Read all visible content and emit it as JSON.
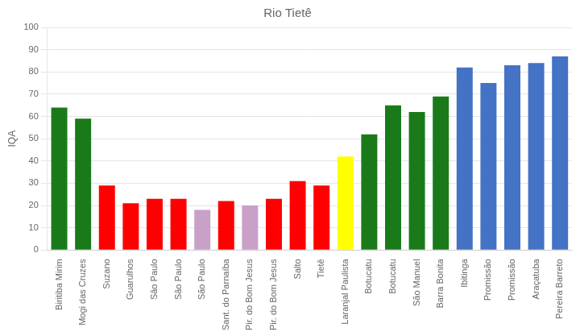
{
  "chart_data": {
    "type": "bar",
    "title": "Rio Tietê",
    "ylabel": "IQA",
    "categories": [
      "Biritiba Mirim",
      "Mogi das Cruzes",
      "Suzano",
      "Guarulhos",
      "São Paulo",
      "São Paulo",
      "São Paulo",
      "Sant. do Parnaíba",
      "Pir. do Bom Jesus",
      "Pir. do Bom Jesus",
      "Salto",
      "Tietê",
      "Laranjal Paulista",
      "Botucatu",
      "Botucatu",
      "São Manuel",
      "Barra Bonita",
      "Ibitinga",
      "Promissão",
      "Promissão",
      "Araçatuba",
      "Pereira Barreto"
    ],
    "values": [
      64,
      59,
      29,
      21,
      23,
      23,
      18,
      22,
      20,
      23,
      31,
      29,
      42,
      52,
      65,
      62,
      69,
      82,
      75,
      83,
      84,
      87
    ],
    "colors": [
      "#1a7a1a",
      "#1a7a1a",
      "#ff0000",
      "#ff0000",
      "#ff0000",
      "#ff0000",
      "#c8a0c8",
      "#ff0000",
      "#c8a0c8",
      "#ff0000",
      "#ff0000",
      "#ff0000",
      "#ffff00",
      "#1a7a1a",
      "#1a7a1a",
      "#1a7a1a",
      "#1a7a1a",
      "#4472c4",
      "#4472c4",
      "#4472c4",
      "#4472c4",
      "#4472c4"
    ],
    "ylim": [
      0,
      100
    ],
    "yticks": [
      0,
      10,
      20,
      30,
      40,
      50,
      60,
      70,
      80,
      90,
      100
    ],
    "grid": true
  }
}
